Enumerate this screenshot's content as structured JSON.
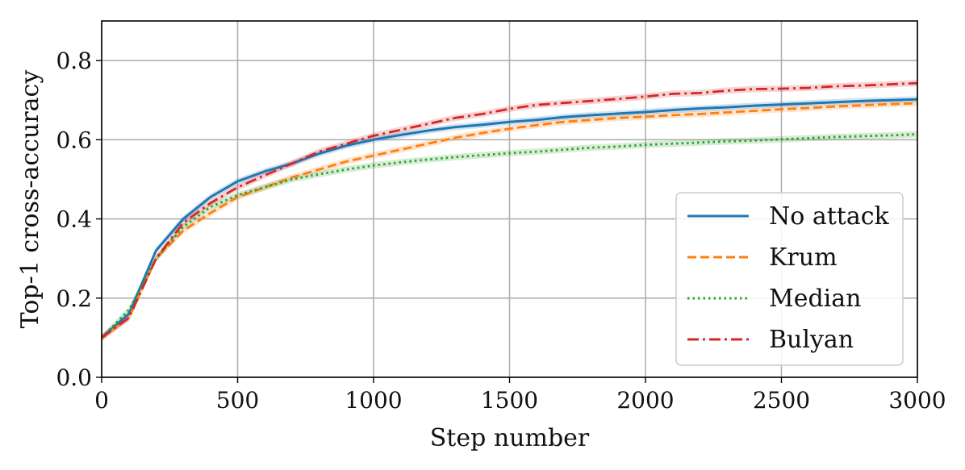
{
  "chart_data": {
    "type": "line",
    "title": "",
    "xlabel": "Step number",
    "ylabel": "Top-1 cross-accuracy",
    "xlim": [
      0,
      3000
    ],
    "ylim": [
      0.0,
      0.9
    ],
    "xticks": [
      "0",
      "500",
      "1000",
      "1500",
      "2000",
      "2500",
      "3000"
    ],
    "yticks": [
      "0.0",
      "0.2",
      "0.4",
      "0.6",
      "0.8"
    ],
    "grid": true,
    "legend_position": "lower-right",
    "x": [
      0,
      100,
      200,
      300,
      400,
      500,
      600,
      700,
      800,
      900,
      1000,
      1100,
      1200,
      1300,
      1400,
      1500,
      1600,
      1700,
      1800,
      1900,
      2000,
      2100,
      2200,
      2300,
      2400,
      2500,
      2600,
      2700,
      2800,
      2900,
      3000
    ],
    "series": [
      {
        "name": "No attack",
        "color": "#1f77b4",
        "style": "solid",
        "values": [
          0.1,
          0.16,
          0.32,
          0.4,
          0.455,
          0.495,
          0.52,
          0.54,
          0.565,
          0.585,
          0.6,
          0.612,
          0.623,
          0.632,
          0.638,
          0.645,
          0.65,
          0.657,
          0.662,
          0.666,
          0.67,
          0.675,
          0.679,
          0.682,
          0.686,
          0.689,
          0.692,
          0.695,
          0.698,
          0.7,
          0.702
        ]
      },
      {
        "name": "Krum",
        "color": "#ff7f0e",
        "style": "dashed",
        "values": [
          0.1,
          0.15,
          0.3,
          0.37,
          0.415,
          0.455,
          0.48,
          0.505,
          0.525,
          0.545,
          0.56,
          0.575,
          0.59,
          0.605,
          0.617,
          0.628,
          0.637,
          0.645,
          0.65,
          0.655,
          0.658,
          0.662,
          0.665,
          0.669,
          0.673,
          0.677,
          0.68,
          0.684,
          0.687,
          0.69,
          0.692
        ]
      },
      {
        "name": "Median",
        "color": "#2ca02c",
        "style": "dotted",
        "values": [
          0.1,
          0.17,
          0.3,
          0.38,
          0.43,
          0.46,
          0.48,
          0.5,
          0.513,
          0.525,
          0.535,
          0.543,
          0.55,
          0.556,
          0.561,
          0.566,
          0.57,
          0.575,
          0.58,
          0.583,
          0.587,
          0.59,
          0.593,
          0.596,
          0.598,
          0.601,
          0.604,
          0.607,
          0.609,
          0.611,
          0.614
        ]
      },
      {
        "name": "Bulyan",
        "color": "#d62728",
        "style": "dashdot",
        "values": [
          0.1,
          0.15,
          0.3,
          0.39,
          0.44,
          0.48,
          0.51,
          0.54,
          0.57,
          0.59,
          0.61,
          0.625,
          0.64,
          0.655,
          0.665,
          0.678,
          0.688,
          0.693,
          0.698,
          0.703,
          0.709,
          0.716,
          0.718,
          0.724,
          0.728,
          0.729,
          0.731,
          0.735,
          0.737,
          0.74,
          0.743
        ]
      }
    ]
  }
}
